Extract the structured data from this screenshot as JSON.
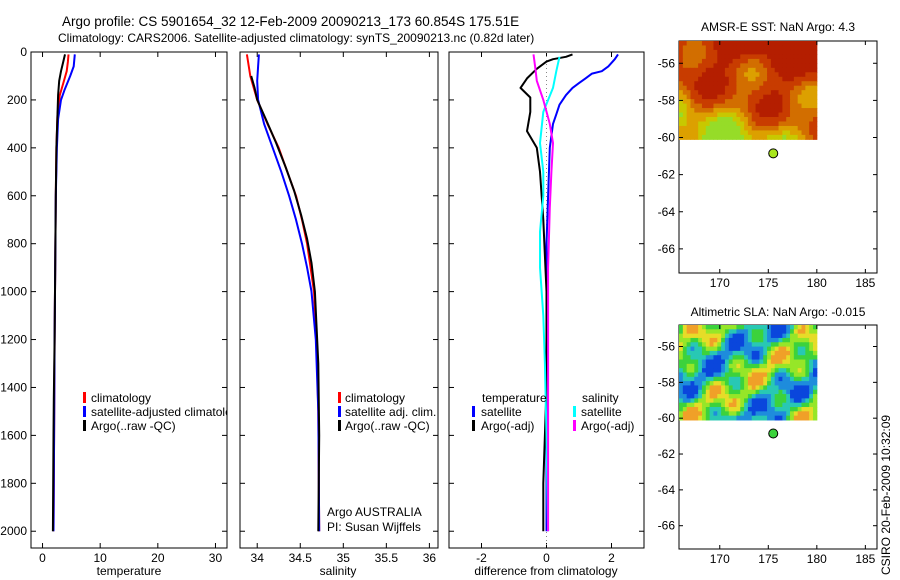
{
  "title_line1": "Argo profile: CS 5901654_32 12-Feb-2009 20090213_173 60.854S 175.51E",
  "title_line2": "Climatology: CARS2006. Satellite-adjusted climatology: synTS_20090213.nc (0.82d later)",
  "side_label": "CSIRO 20-Feb-2009 10:32:09",
  "colors": {
    "climatology": "#ff0000",
    "satellite": "#0000ff",
    "argo": "#000000",
    "sal_sat": "#00ffff",
    "sal_argo": "#ff00ff"
  },
  "chart_data": [
    {
      "id": "temperature",
      "type": "line",
      "xlabel": "temperature",
      "ylabel": "",
      "xlim": [
        -2,
        32
      ],
      "ylim": [
        2070,
        0
      ],
      "xticks": [
        0,
        10,
        20,
        30
      ],
      "yticks": [
        0,
        200,
        400,
        600,
        800,
        1000,
        1200,
        1400,
        1600,
        1800,
        2000
      ],
      "legend": [
        "climatology",
        "satellite-adjusted climatology",
        "Argo(..raw -QC)"
      ],
      "series": [
        {
          "name": "climatology",
          "color": "#ff0000",
          "points": [
            [
              4.5,
              10
            ],
            [
              4.4,
              40
            ],
            [
              4.2,
              80
            ],
            [
              3.6,
              130
            ],
            [
              3.0,
              180
            ],
            [
              2.6,
              260
            ],
            [
              2.4,
              400
            ],
            [
              2.3,
              600
            ],
            [
              2.2,
              900
            ],
            [
              2.1,
              1200
            ],
            [
              2.0,
              1600
            ],
            [
              1.9,
              2000
            ]
          ]
        },
        {
          "name": "satellite-adjusted climatology",
          "color": "#0000ff",
          "points": [
            [
              5.6,
              10
            ],
            [
              5.4,
              60
            ],
            [
              4.8,
              100
            ],
            [
              3.8,
              160
            ],
            [
              3.2,
              200
            ],
            [
              2.7,
              280
            ],
            [
              2.5,
              400
            ],
            [
              2.3,
              600
            ],
            [
              2.2,
              900
            ],
            [
              2.1,
              1200
            ],
            [
              2.0,
              1600
            ],
            [
              1.9,
              2000
            ]
          ]
        },
        {
          "name": "Argo(..raw -QC)",
          "color": "#000000",
          "points": [
            [
              3.9,
              10
            ],
            [
              3.6,
              40
            ],
            [
              3.2,
              80
            ],
            [
              2.9,
              120
            ],
            [
              2.7,
              180
            ],
            [
              2.6,
              260
            ],
            [
              2.4,
              400
            ],
            [
              2.3,
              600
            ],
            [
              2.2,
              900
            ],
            [
              2.1,
              1200
            ],
            [
              1.95,
              1450
            ],
            [
              1.9,
              1600
            ],
            [
              1.8,
              2000
            ]
          ]
        }
      ]
    },
    {
      "id": "salinity",
      "type": "line",
      "xlabel": "salinity",
      "ylabel": "",
      "xlim": [
        33.8,
        36.1
      ],
      "ylim": [
        2070,
        0
      ],
      "xticks": [
        34,
        34.5,
        35,
        35.5,
        36
      ],
      "xticklabels": [
        "34",
        "34.5",
        "35",
        "35.5",
        "36"
      ],
      "legend": [
        "climatology",
        "satellite adj. clim.",
        "Argo(..raw -QC)"
      ],
      "annotation": [
        "Argo AUSTRALIA",
        "PI: Susan Wijffels"
      ],
      "series": [
        {
          "name": "climatology",
          "color": "#ff0000",
          "points": [
            [
              33.88,
              10
            ],
            [
              33.92,
              100
            ],
            [
              34.0,
              200
            ],
            [
              34.12,
              300
            ],
            [
              34.25,
              400
            ],
            [
              34.35,
              500
            ],
            [
              34.45,
              600
            ],
            [
              34.52,
              700
            ],
            [
              34.58,
              800
            ],
            [
              34.62,
              900
            ],
            [
              34.66,
              1000
            ],
            [
              34.69,
              1200
            ],
            [
              34.71,
              1500
            ],
            [
              34.72,
              2000
            ]
          ]
        },
        {
          "name": "satellite adj. clim.",
          "color": "#0000ff",
          "points": [
            [
              34.02,
              10
            ],
            [
              34.01,
              60
            ],
            [
              34.0,
              120
            ],
            [
              34.01,
              200
            ],
            [
              34.08,
              300
            ],
            [
              34.18,
              400
            ],
            [
              34.28,
              500
            ],
            [
              34.37,
              600
            ],
            [
              34.45,
              700
            ],
            [
              34.52,
              800
            ],
            [
              34.58,
              900
            ],
            [
              34.63,
              1000
            ],
            [
              34.68,
              1200
            ],
            [
              34.71,
              1500
            ],
            [
              34.72,
              2000
            ]
          ]
        },
        {
          "name": "Argo(..raw -QC)",
          "color": "#000000",
          "points": [
            [
              33.93,
              100
            ],
            [
              33.97,
              150
            ],
            [
              34.0,
              200
            ],
            [
              34.1,
              280
            ],
            [
              34.22,
              380
            ],
            [
              34.33,
              480
            ],
            [
              34.43,
              580
            ],
            [
              34.51,
              680
            ],
            [
              34.58,
              780
            ],
            [
              34.63,
              880
            ],
            [
              34.67,
              1000
            ],
            [
              34.69,
              1150
            ],
            [
              34.71,
              1300
            ],
            [
              34.72,
              1600
            ],
            [
              34.71,
              2000
            ]
          ]
        }
      ]
    },
    {
      "id": "difference",
      "type": "line",
      "xlabel": "difference from climatology",
      "ylabel": "",
      "xlim": [
        -3.0,
        3.0
      ],
      "ylim": [
        2070,
        0
      ],
      "xticks": [
        -2,
        0,
        2
      ],
      "legend_left": [
        "temperature",
        "satellite",
        "Argo(-adj)"
      ],
      "legend_right": [
        "salinity",
        "satellite",
        "Argo(-adj)"
      ],
      "series": [
        {
          "name": "temperature satellite",
          "color": "#0000ff",
          "points": [
            [
              2.2,
              10
            ],
            [
              2.1,
              30
            ],
            [
              1.9,
              60
            ],
            [
              1.7,
              80
            ],
            [
              1.4,
              90
            ],
            [
              1.2,
              110
            ],
            [
              1.0,
              130
            ],
            [
              0.8,
              150
            ],
            [
              0.6,
              180
            ],
            [
              0.4,
              220
            ],
            [
              0.3,
              260
            ],
            [
              0.2,
              300
            ],
            [
              0.1,
              400
            ],
            [
              0.05,
              600
            ],
            [
              0.0,
              800
            ],
            [
              0.0,
              1200
            ],
            [
              0.0,
              2000
            ]
          ]
        },
        {
          "name": "temperature Argo(-adj)",
          "color": "#000000",
          "points": [
            [
              0.8,
              10
            ],
            [
              0.6,
              20
            ],
            [
              0.2,
              30
            ],
            [
              0.0,
              40
            ],
            [
              -0.3,
              70
            ],
            [
              -0.6,
              110
            ],
            [
              -0.8,
              150
            ],
            [
              -0.5,
              190
            ],
            [
              -0.5,
              250
            ],
            [
              -0.6,
              330
            ],
            [
              -0.3,
              400
            ],
            [
              -0.2,
              500
            ],
            [
              -0.1,
              700
            ],
            [
              0.0,
              1000
            ],
            [
              0.0,
              1400
            ],
            [
              -0.1,
              1800
            ],
            [
              -0.1,
              2000
            ]
          ]
        },
        {
          "name": "salinity satellite",
          "color": "#00ffff",
          "points": [
            [
              0.4,
              20
            ],
            [
              0.3,
              80
            ],
            [
              0.2,
              150
            ],
            [
              -0.1,
              250
            ],
            [
              -0.2,
              380
            ],
            [
              -0.1,
              500
            ],
            [
              -0.1,
              600
            ],
            [
              -0.2,
              750
            ],
            [
              -0.2,
              900
            ],
            [
              -0.1,
              1100
            ],
            [
              -0.05,
              1300
            ],
            [
              0.0,
              1600
            ],
            [
              0.05,
              2000
            ]
          ]
        },
        {
          "name": "salinity Argo(-adj)",
          "color": "#ff00ff",
          "points": [
            [
              -0.4,
              10
            ],
            [
              -0.35,
              60
            ],
            [
              -0.3,
              120
            ],
            [
              -0.1,
              200
            ],
            [
              0.1,
              300
            ],
            [
              0.2,
              380
            ],
            [
              0.15,
              500
            ],
            [
              0.1,
              650
            ],
            [
              0.05,
              900
            ],
            [
              0.05,
              1200
            ],
            [
              0.05,
              1600
            ],
            [
              0.05,
              2000
            ]
          ]
        }
      ]
    },
    {
      "id": "sst_map",
      "type": "heatmap",
      "title": "AMSR-E SST: NaN Argo: 4.3",
      "xlim": [
        165.8,
        186.2
      ],
      "ylim": [
        -67.3,
        -54.8
      ],
      "xticks": [
        170,
        175,
        180,
        185
      ],
      "yticks": [
        -56,
        -58,
        -60,
        -62,
        -64,
        -66
      ],
      "marker": {
        "lon": 175.51,
        "lat": -60.854,
        "color": "#a8e61d"
      }
    },
    {
      "id": "sla_map",
      "type": "heatmap",
      "title": "Altimetric SLA: NaN Argo: -0.015",
      "xlim": [
        165.8,
        186.2
      ],
      "ylim": [
        -67.3,
        -54.8
      ],
      "xticks": [
        170,
        175,
        180,
        185
      ],
      "yticks": [
        -56,
        -58,
        -60,
        -62,
        -64,
        -66
      ],
      "marker": {
        "lon": 175.51,
        "lat": -60.854,
        "color": "#3cd23c"
      }
    }
  ]
}
